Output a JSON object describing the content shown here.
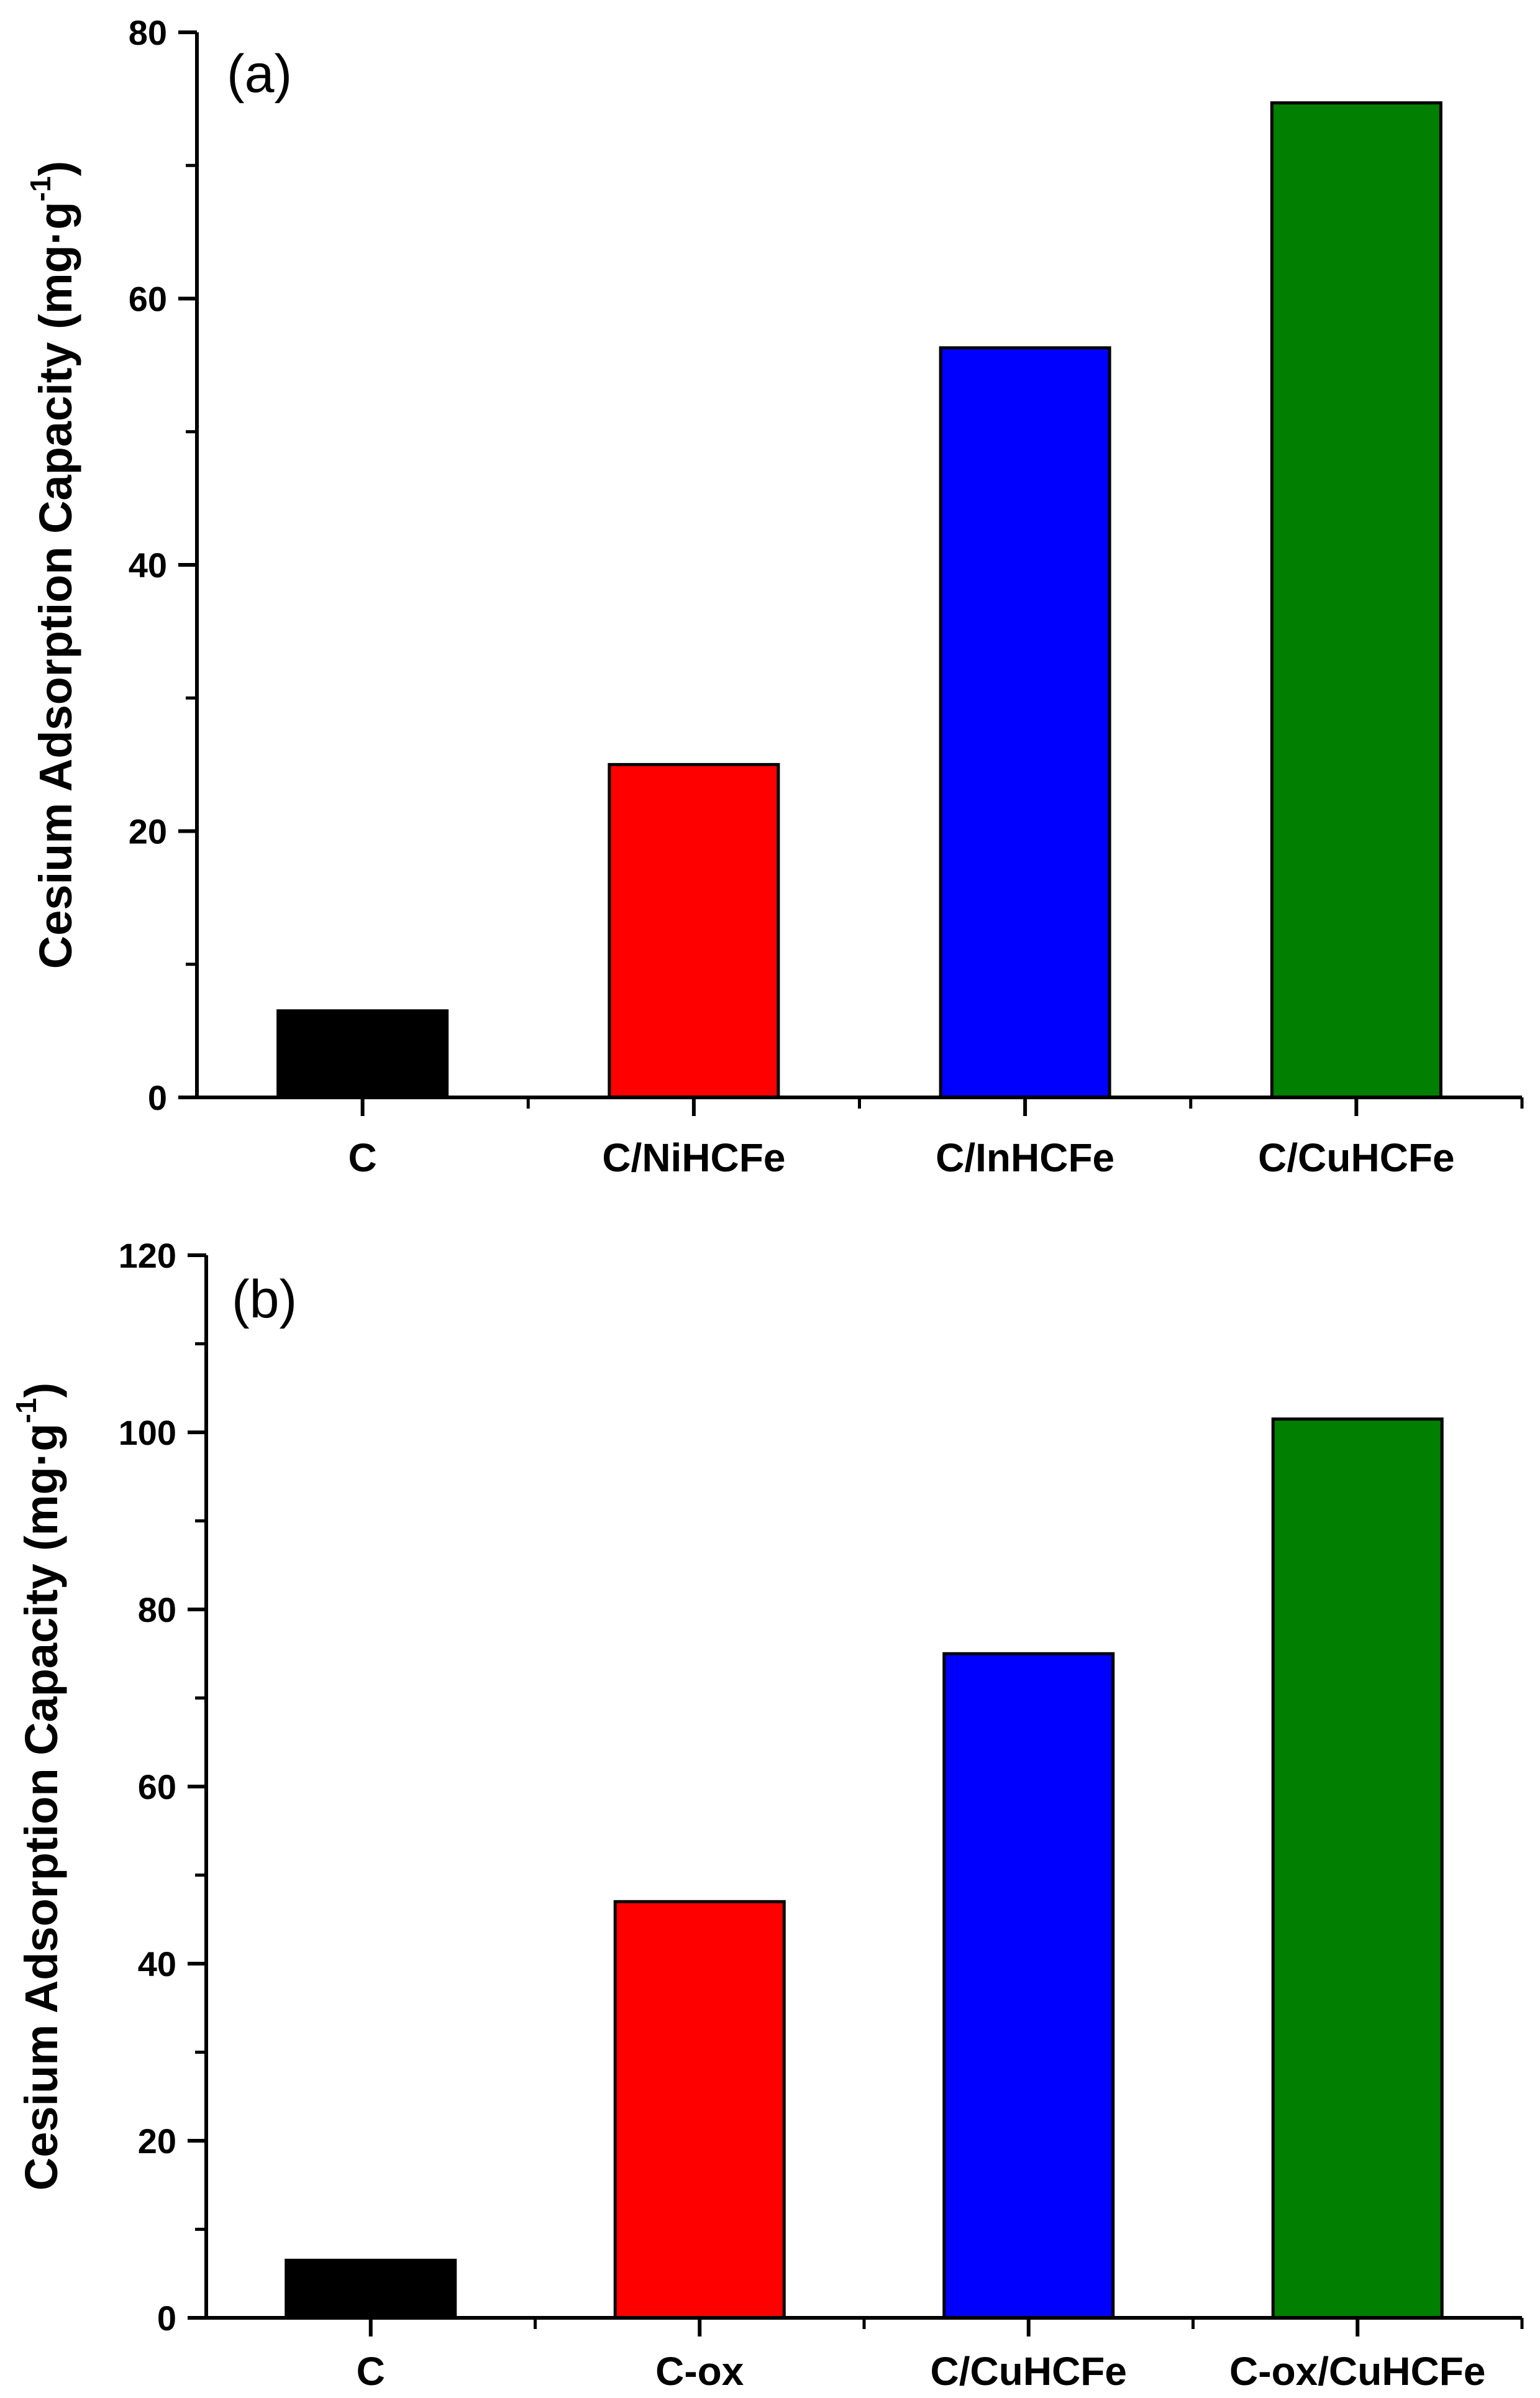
{
  "chart_data": [
    {
      "type": "bar",
      "panel_label": "(a)",
      "categories": [
        "C",
        "C/NiHCFe",
        "C/InHCFe",
        "C/CuHCFe"
      ],
      "values": [
        6.5,
        25,
        56.3,
        74.7
      ],
      "colors": [
        "#000000",
        "#ff0000",
        "#0000ff",
        "#007f00"
      ],
      "ylabel": "Cesium Adsorption Capacity (mg·g",
      "ylabel_superscript": "-1",
      "ylabel_suffix": ")",
      "xlabel": "",
      "ylim": [
        0,
        80
      ],
      "yticks": [
        "0",
        "20",
        "40",
        "60",
        "80"
      ],
      "ytick_values": [
        0,
        20,
        40,
        60,
        80
      ],
      "grid": false
    },
    {
      "type": "bar",
      "panel_label": "(b)",
      "categories": [
        "C",
        "C-ox",
        "C/CuHCFe",
        "C-ox/CuHCFe"
      ],
      "values": [
        6.5,
        47,
        75,
        101.5
      ],
      "colors": [
        "#000000",
        "#ff0000",
        "#0000ff",
        "#007f00"
      ],
      "ylabel": "Cesium Adsorption Capacity (mg·g",
      "ylabel_superscript": "-1",
      "ylabel_suffix": ")",
      "xlabel": "",
      "ylim": [
        0,
        120
      ],
      "yticks": [
        "0",
        "20",
        "40",
        "60",
        "80",
        "100",
        "120"
      ],
      "ytick_values": [
        0,
        20,
        40,
        60,
        80,
        100,
        120
      ],
      "grid": false
    }
  ]
}
